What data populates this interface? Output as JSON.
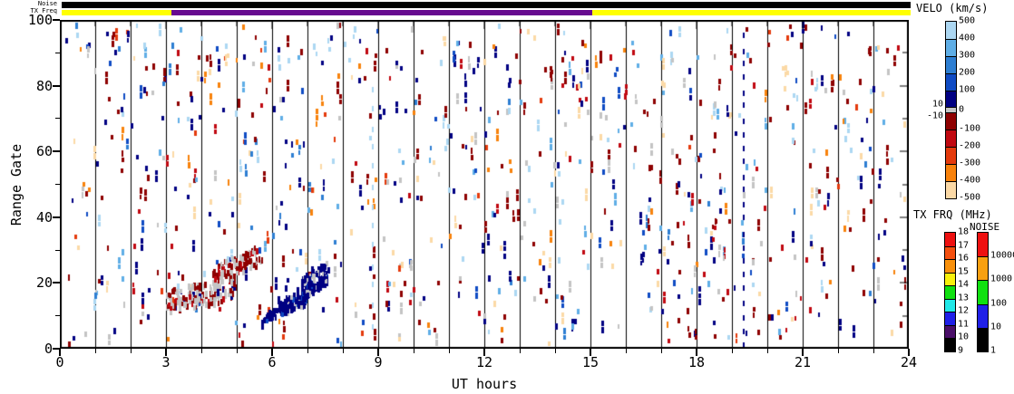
{
  "figure": {
    "x_axis_label": "UT hours",
    "y_axis_label": "Range Gate"
  },
  "axes": {
    "x": {
      "min": 0,
      "max": 24,
      "major_ticks": [
        0,
        3,
        6,
        9,
        12,
        15,
        18,
        21,
        24
      ],
      "tick_labels": [
        "0",
        "3",
        "6",
        "9",
        "12",
        "15",
        "18",
        "21",
        "24"
      ],
      "minor_step": 1
    },
    "y": {
      "min": 0,
      "max": 100,
      "major_ticks": [
        0,
        20,
        40,
        60,
        80,
        100
      ],
      "tick_labels": [
        "0",
        "20",
        "40",
        "60",
        "80",
        "100"
      ],
      "minor_step": 10
    }
  },
  "top_bars": {
    "noise_label": "Noise",
    "tx_freq_label": "TX Freq",
    "noise_segments": [
      {
        "from_hour": 0,
        "to_hour": 24,
        "color": "#000000"
      }
    ],
    "tx_freq_segments": [
      {
        "from_hour": 0,
        "to_hour": 3.1,
        "color": "#FFFF00"
      },
      {
        "from_hour": 3.1,
        "to_hour": 15.0,
        "color": "#670B8F"
      },
      {
        "from_hour": 15.0,
        "to_hour": 24,
        "color": "#FFFF00"
      }
    ]
  },
  "colorbars": {
    "velo": {
      "title": "VELO (km/s)",
      "pos_colors": [
        "#ACD7F2",
        "#5FAEE6",
        "#2D7ED2",
        "#0F4BC4",
        "#000082"
      ],
      "zero_color": "#C4C4C4",
      "neg_colors": [
        "#8E0000",
        "#C00810",
        "#E43A0C",
        "#F8820C",
        "#FBD9A6"
      ],
      "right_labels": [
        "500",
        "400",
        "300",
        "200",
        "100",
        "0",
        "-100",
        "-200",
        "-300",
        "-400",
        "-500"
      ],
      "left_labels": [
        "10",
        "-10"
      ]
    },
    "tx_frq": {
      "title": "TX FRQ (MHz)",
      "colors": [
        "#EE1010",
        "#F4500F",
        "#F8900B",
        "#F8F00B",
        "#10E010",
        "#20E8E8",
        "#2020E8",
        "#4A0E68",
        "#000000"
      ],
      "labels": [
        "18",
        "17",
        "16",
        "15",
        "14",
        "13",
        "12",
        "11",
        "10",
        "9"
      ]
    },
    "noise": {
      "title": "NOISE",
      "colors": [
        "#EE1010",
        "#F8A010",
        "#10E010",
        "#2020E8",
        "#000000"
      ],
      "labels": [
        "10000",
        "1000",
        "100",
        "10",
        "1"
      ]
    }
  },
  "chart_data": {
    "type": "scatter",
    "title": "",
    "xlabel": "UT hours",
    "ylabel": "Range Gate",
    "xlim": [
      0,
      24
    ],
    "ylim": [
      0,
      100
    ],
    "background": "#FFFFFF",
    "hour_gridlines": {
      "every": 1,
      "color": "#000000"
    },
    "random_scatter": {
      "seed": 1337,
      "count": 920,
      "pair_chance": 0.22,
      "palette": [
        [
          "#000082",
          16
        ],
        [
          "#0F4BC4",
          5
        ],
        [
          "#2D7ED2",
          4
        ],
        [
          "#5FAEE6",
          7
        ],
        [
          "#ACD7F2",
          9
        ],
        [
          "#8E0000",
          19
        ],
        [
          "#C00810",
          6
        ],
        [
          "#E43A0C",
          3
        ],
        [
          "#F8820C",
          5
        ],
        [
          "#FBD9A6",
          8
        ],
        [
          "#C4C4C4",
          9
        ]
      ]
    },
    "clusters": [
      {
        "name": "ground-scatter-band",
        "h0": 3.02,
        "g0": 15,
        "h1": 4.9,
        "g1": 19,
        "spread_gates": 3.5,
        "count": 170,
        "palette": [
          [
            "#C4C4C4",
            58
          ],
          [
            "#8E0000",
            26
          ],
          [
            "#C00810",
            8
          ],
          [
            "#000082",
            8
          ]
        ]
      },
      {
        "name": "red-gray-band-upper",
        "h0": 4.35,
        "g0": 23,
        "h1": 5.65,
        "g1": 29,
        "spread_gates": 3,
        "count": 95,
        "palette": [
          [
            "#8E0000",
            50
          ],
          [
            "#C4C4C4",
            32
          ],
          [
            "#C00810",
            18
          ]
        ]
      },
      {
        "name": "navy-patch-low",
        "h0": 6.15,
        "g0": 13.5,
        "h1": 6.95,
        "g1": 15.5,
        "spread_gates": 2.5,
        "count": 95,
        "palette": [
          [
            "#000082",
            78
          ],
          [
            "#C4C4C4",
            12
          ],
          [
            "#0F4BC4",
            10
          ]
        ]
      },
      {
        "name": "navy-patch-high",
        "h0": 6.8,
        "g0": 18.5,
        "h1": 7.55,
        "g1": 24,
        "spread_gates": 3.5,
        "count": 115,
        "palette": [
          [
            "#000082",
            66
          ],
          [
            "#C4C4C4",
            22
          ],
          [
            "#0F4BC4",
            12
          ]
        ]
      },
      {
        "name": "navy-wisp",
        "h0": 5.7,
        "g0": 8.5,
        "h1": 6.1,
        "g1": 12,
        "spread_gates": 1.5,
        "count": 22,
        "palette": [
          [
            "#000082",
            90
          ],
          [
            "#0F4BC4",
            10
          ]
        ]
      }
    ],
    "streaks": [
      {
        "hour": 8.85,
        "g0": 8,
        "g1": 80,
        "count": 13,
        "color": "#ACD7F2"
      },
      {
        "hour": 19.33,
        "g0": 2,
        "g1": 96,
        "count": 23,
        "color": "#000082"
      }
    ]
  }
}
